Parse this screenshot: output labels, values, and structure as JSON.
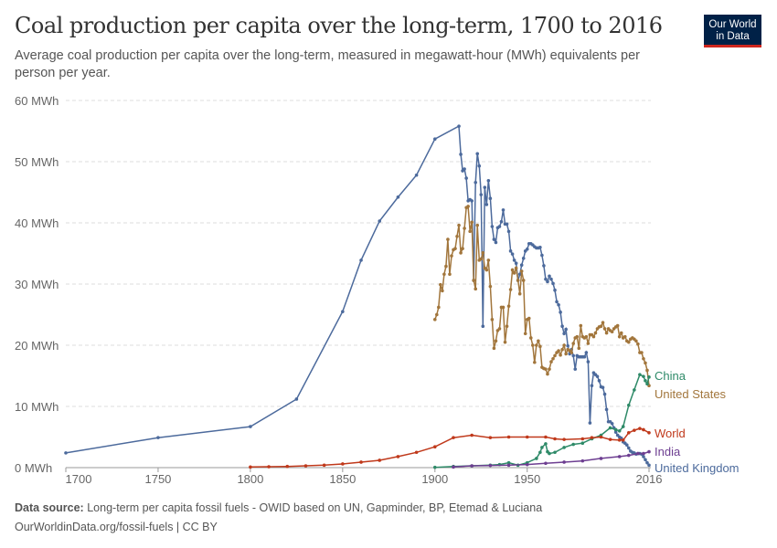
{
  "title": "Coal production per capita over the long-term, 1700 to 2016",
  "subtitle": "Average coal production per capita over the long-term, measured in megawatt-hour (MWh) equivalents per person per year.",
  "logo": {
    "line1": "Our World",
    "line2": "in Data",
    "bg": "#002147",
    "accent": "#ce261e"
  },
  "footer": {
    "source_label": "Data source:",
    "source_text": "Long-term per capita fossil fuels - OWID based on UN, Gapminder, BP, Etemad & Luciana",
    "license": "OurWorldinData.org/fossil-fuels | CC BY"
  },
  "chart_data": {
    "type": "line",
    "xlim": [
      1700,
      2016
    ],
    "ylim": [
      0,
      60
    ],
    "x_ticks": [
      "1700",
      "1750",
      "1800",
      "1850",
      "1900",
      "1950",
      "2016"
    ],
    "x_tick_values": [
      1700,
      1750,
      1800,
      1850,
      1900,
      1950,
      2016
    ],
    "y_ticks": [
      "0 MWh",
      "10 MWh",
      "20 MWh",
      "30 MWh",
      "40 MWh",
      "50 MWh",
      "60 MWh"
    ],
    "y_tick_values": [
      0,
      10,
      20,
      30,
      40,
      50,
      60
    ],
    "grid": "horizontal dashed",
    "legend": "right end labels",
    "series": [
      {
        "name": "United Kingdom",
        "color": "#4c6a9c",
        "x": [
          1700,
          1750,
          1800,
          1825,
          1850,
          1860,
          1870,
          1880,
          1890,
          1900,
          1913,
          1914,
          1915,
          1916,
          1917,
          1918,
          1919,
          1920,
          1921,
          1922,
          1923,
          1924,
          1925,
          1926,
          1927,
          1928,
          1929,
          1930,
          1931,
          1932,
          1933,
          1934,
          1935,
          1936,
          1937,
          1938,
          1939,
          1940,
          1941,
          1942,
          1943,
          1944,
          1945,
          1946,
          1947,
          1948,
          1949,
          1950,
          1951,
          1952,
          1953,
          1954,
          1955,
          1956,
          1957,
          1958,
          1959,
          1960,
          1961,
          1962,
          1963,
          1964,
          1965,
          1966,
          1967,
          1968,
          1969,
          1970,
          1971,
          1972,
          1973,
          1974,
          1975,
          1976,
          1977,
          1978,
          1979,
          1980,
          1981,
          1982,
          1983,
          1984,
          1985,
          1986,
          1987,
          1988,
          1989,
          1990,
          1991,
          1992,
          1993,
          1994,
          1995,
          1996,
          1997,
          1998,
          1999,
          2000,
          2001,
          2002,
          2003,
          2004,
          2005,
          2006,
          2007,
          2008,
          2009,
          2010,
          2011,
          2012,
          2013,
          2014,
          2015,
          2016
        ],
        "y": [
          2.4,
          4.9,
          6.7,
          11.2,
          25.5,
          33.9,
          40.3,
          44.2,
          47.8,
          53.7,
          55.8,
          51.2,
          48.5,
          48.8,
          47.3,
          43.6,
          43.8,
          43.6,
          30.6,
          46.6,
          51.3,
          49.3,
          44.6,
          23.1,
          45.8,
          43,
          46.9,
          44,
          39.4,
          37.3,
          36.8,
          39.2,
          39.4,
          40.2,
          42.1,
          39.8,
          39.8,
          38.6,
          35.4,
          34.9,
          33.9,
          33.4,
          30.6,
          31.6,
          33.1,
          34.2,
          35.4,
          35.7,
          36.6,
          36.6,
          36.4,
          36.1,
          35.9,
          35.9,
          36,
          34.7,
          33,
          30.8,
          30.4,
          31.3,
          30.8,
          30.1,
          29,
          27.1,
          26.6,
          25.4,
          23.1,
          21.9,
          22.6,
          19.9,
          18.6,
          19.3,
          18.3,
          16.1,
          18.3,
          18.1,
          18.1,
          18.1,
          18.1,
          18.8,
          17.3,
          7.3,
          13.4,
          15.5,
          15.2,
          14.9,
          14.2,
          13.2,
          13.1,
          12,
          9.5,
          7.5,
          7.5,
          7.2,
          6.5,
          5.8,
          5.3,
          5,
          4.8,
          4.2,
          4,
          3.7,
          3.2,
          2.7,
          2.5,
          2.4,
          2.2,
          2.3,
          2.3,
          2.2,
          1.8,
          1.3,
          0.8,
          0.4
        ]
      },
      {
        "name": "United States",
        "color": "#a2763c",
        "x": [
          1900,
          1901,
          1902,
          1903,
          1904,
          1905,
          1906,
          1907,
          1908,
          1909,
          1910,
          1911,
          1912,
          1913,
          1914,
          1915,
          1916,
          1917,
          1918,
          1919,
          1920,
          1921,
          1922,
          1923,
          1924,
          1925,
          1926,
          1927,
          1928,
          1929,
          1930,
          1931,
          1932,
          1933,
          1934,
          1935,
          1936,
          1937,
          1938,
          1939,
          1940,
          1941,
          1942,
          1943,
          1944,
          1945,
          1946,
          1947,
          1948,
          1949,
          1950,
          1951,
          1952,
          1953,
          1954,
          1955,
          1956,
          1957,
          1958,
          1959,
          1960,
          1961,
          1962,
          1963,
          1964,
          1965,
          1966,
          1967,
          1968,
          1969,
          1970,
          1971,
          1972,
          1973,
          1974,
          1975,
          1976,
          1977,
          1978,
          1979,
          1980,
          1981,
          1982,
          1983,
          1984,
          1985,
          1986,
          1987,
          1988,
          1989,
          1990,
          1991,
          1992,
          1993,
          1994,
          1995,
          1996,
          1997,
          1998,
          1999,
          2000,
          2001,
          2002,
          2003,
          2004,
          2005,
          2006,
          2007,
          2008,
          2009,
          2010,
          2011,
          2012,
          2013,
          2014,
          2015,
          2016
        ],
        "y": [
          24.2,
          25,
          26.2,
          29.9,
          28.9,
          31.6,
          32.9,
          37.3,
          31.6,
          34.6,
          35.6,
          35.8,
          37.8,
          39.6,
          35.1,
          35.8,
          39.1,
          42.5,
          42.7,
          38.6,
          40.1,
          30.6,
          29.2,
          39.6,
          33.9,
          34.1,
          35.1,
          32.6,
          32.3,
          33.9,
          29.6,
          24.2,
          19.5,
          20.7,
          22.4,
          22.7,
          26.2,
          26.2,
          20.5,
          23.1,
          26.4,
          29.1,
          32.3,
          31.8,
          32.6,
          30.6,
          28.4,
          32.1,
          30.6,
          21.9,
          24.2,
          24.4,
          21.2,
          20,
          17.2,
          20,
          20.7,
          19.8,
          16.4,
          16.2,
          16.1,
          15.3,
          16.1,
          17.3,
          17.8,
          18.3,
          18.8,
          19.1,
          18.4,
          19.3,
          20,
          18.6,
          19.3,
          19.1,
          18.8,
          20.3,
          21.2,
          21.4,
          19.5,
          23.2,
          21.4,
          21.2,
          21.4,
          20.3,
          21.7,
          21.7,
          21.4,
          22,
          22.7,
          23,
          23.1,
          23.7,
          22.7,
          22,
          22.7,
          22.4,
          22.2,
          22.7,
          23,
          23.2,
          21.4,
          22,
          21.2,
          21.4,
          20.7,
          20.5,
          21,
          21.2,
          21,
          20.7,
          20.2,
          18.8,
          18.8,
          17.8,
          17.1,
          15.9,
          13.4
        ]
      },
      {
        "name": "China",
        "color": "#2e8a68",
        "x": [
          1900,
          1910,
          1920,
          1930,
          1935,
          1940,
          1945,
          1950,
          1955,
          1957,
          1958,
          1960,
          1961,
          1962,
          1965,
          1970,
          1975,
          1980,
          1985,
          1990,
          1995,
          1998,
          2000,
          2002,
          2005,
          2008,
          2011,
          2013,
          2014,
          2015,
          2016
        ],
        "y": [
          0.05,
          0.2,
          0.3,
          0.4,
          0.5,
          0.8,
          0.4,
          0.8,
          1.5,
          2.5,
          3.3,
          3.9,
          2.6,
          2.3,
          2.5,
          3.3,
          3.8,
          4,
          4.7,
          5.3,
          6.5,
          6.2,
          6,
          6.7,
          10.2,
          12.7,
          15.2,
          14.9,
          14.2,
          13.7,
          14.8
        ]
      },
      {
        "name": "World",
        "color": "#c0391b",
        "x": [
          1800,
          1810,
          1820,
          1830,
          1840,
          1850,
          1860,
          1870,
          1880,
          1890,
          1900,
          1910,
          1920,
          1930,
          1940,
          1950,
          1960,
          1965,
          1970,
          1980,
          1985,
          1990,
          1995,
          2000,
          2002,
          2005,
          2008,
          2011,
          2013,
          2016
        ],
        "y": [
          0.1,
          0.15,
          0.2,
          0.3,
          0.4,
          0.6,
          0.9,
          1.2,
          1.8,
          2.5,
          3.4,
          4.9,
          5.3,
          4.9,
          5,
          5,
          5,
          4.7,
          4.6,
          4.7,
          4.9,
          5,
          4.6,
          4.5,
          4.5,
          5.7,
          6.1,
          6.4,
          6.2,
          5.7
        ]
      },
      {
        "name": "India",
        "color": "#6d3e91",
        "x": [
          1910,
          1920,
          1930,
          1940,
          1950,
          1960,
          1970,
          1980,
          1990,
          2000,
          2005,
          2010,
          2013,
          2016
        ],
        "y": [
          0.1,
          0.3,
          0.35,
          0.4,
          0.5,
          0.7,
          0.9,
          1.1,
          1.5,
          1.8,
          2,
          2.3,
          2.3,
          2.6
        ]
      }
    ]
  }
}
